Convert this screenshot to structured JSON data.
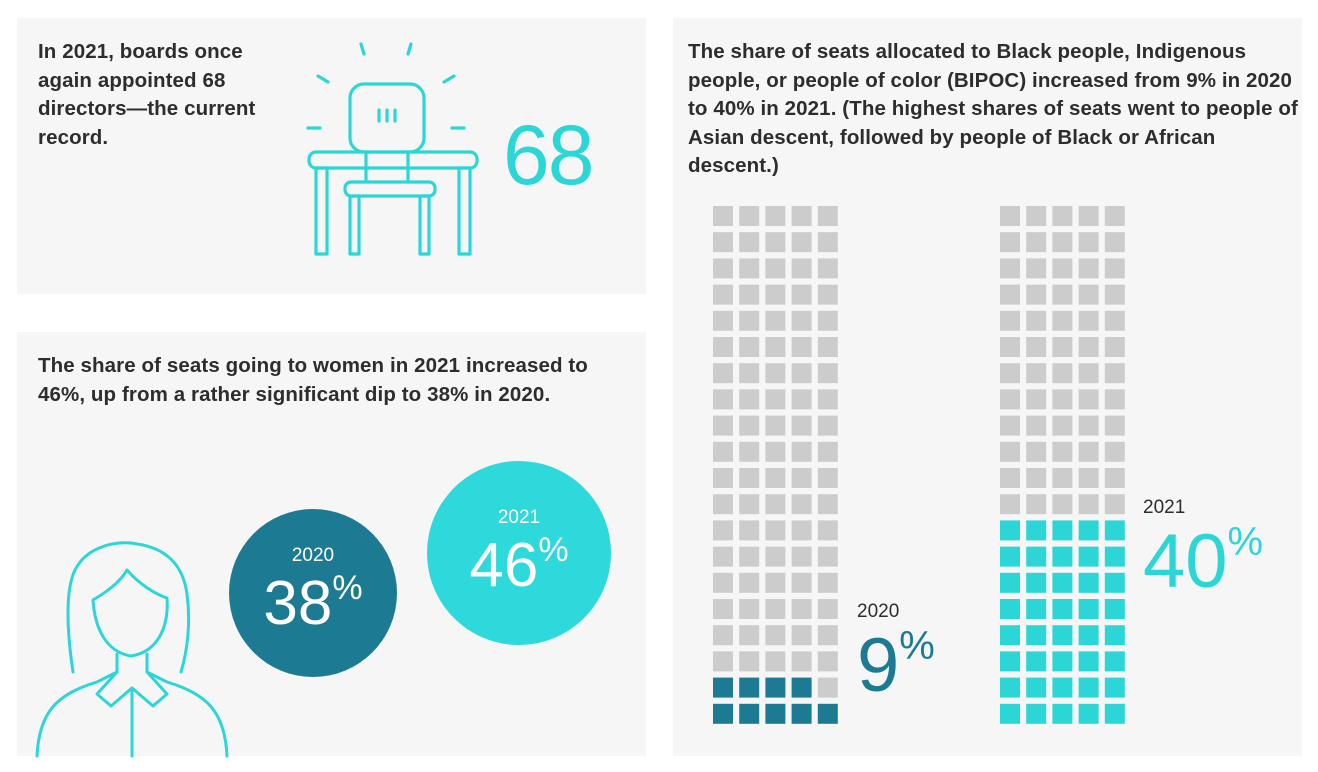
{
  "panel_record": {
    "text": "In 2021, boards once again appointed 68 directors—the current record.",
    "big_number": "68",
    "icon": "desk-chair-icon",
    "accent_color": "#2dd6d6"
  },
  "panel_women": {
    "text": "The share of seats going to women in 2021 increased to 46%, up from a rather significant dip to 38% in 2020.",
    "icon": "woman-icon",
    "circles": [
      {
        "year": "2020",
        "value": "38",
        "unit": "%",
        "color": "#1c7b93"
      },
      {
        "year": "2021",
        "value": "46",
        "unit": "%",
        "color": "#2dd9db"
      }
    ]
  },
  "panel_bipoc": {
    "text": "The share of seats allocated to Black people, Indigenous people, or people of color (BIPOC) increased from 9% in 2020 to 40% in 2021. (The highest shares of seats went to people of Asian descent, followed by people of Black or African descent.)"
  },
  "chart_data": {
    "type": "waffle",
    "title": "Share of seats allocated to BIPOC",
    "grid": {
      "columns": 5,
      "rows": 20,
      "total_cells": 100
    },
    "empty_color": "#cccccc",
    "series": [
      {
        "name": "2020",
        "year_label": "2020",
        "value": 9,
        "unit": "%",
        "color": "#1c7b93"
      },
      {
        "name": "2021",
        "year_label": "2021",
        "value": 40,
        "unit": "%",
        "color": "#2dd6d6"
      }
    ]
  }
}
